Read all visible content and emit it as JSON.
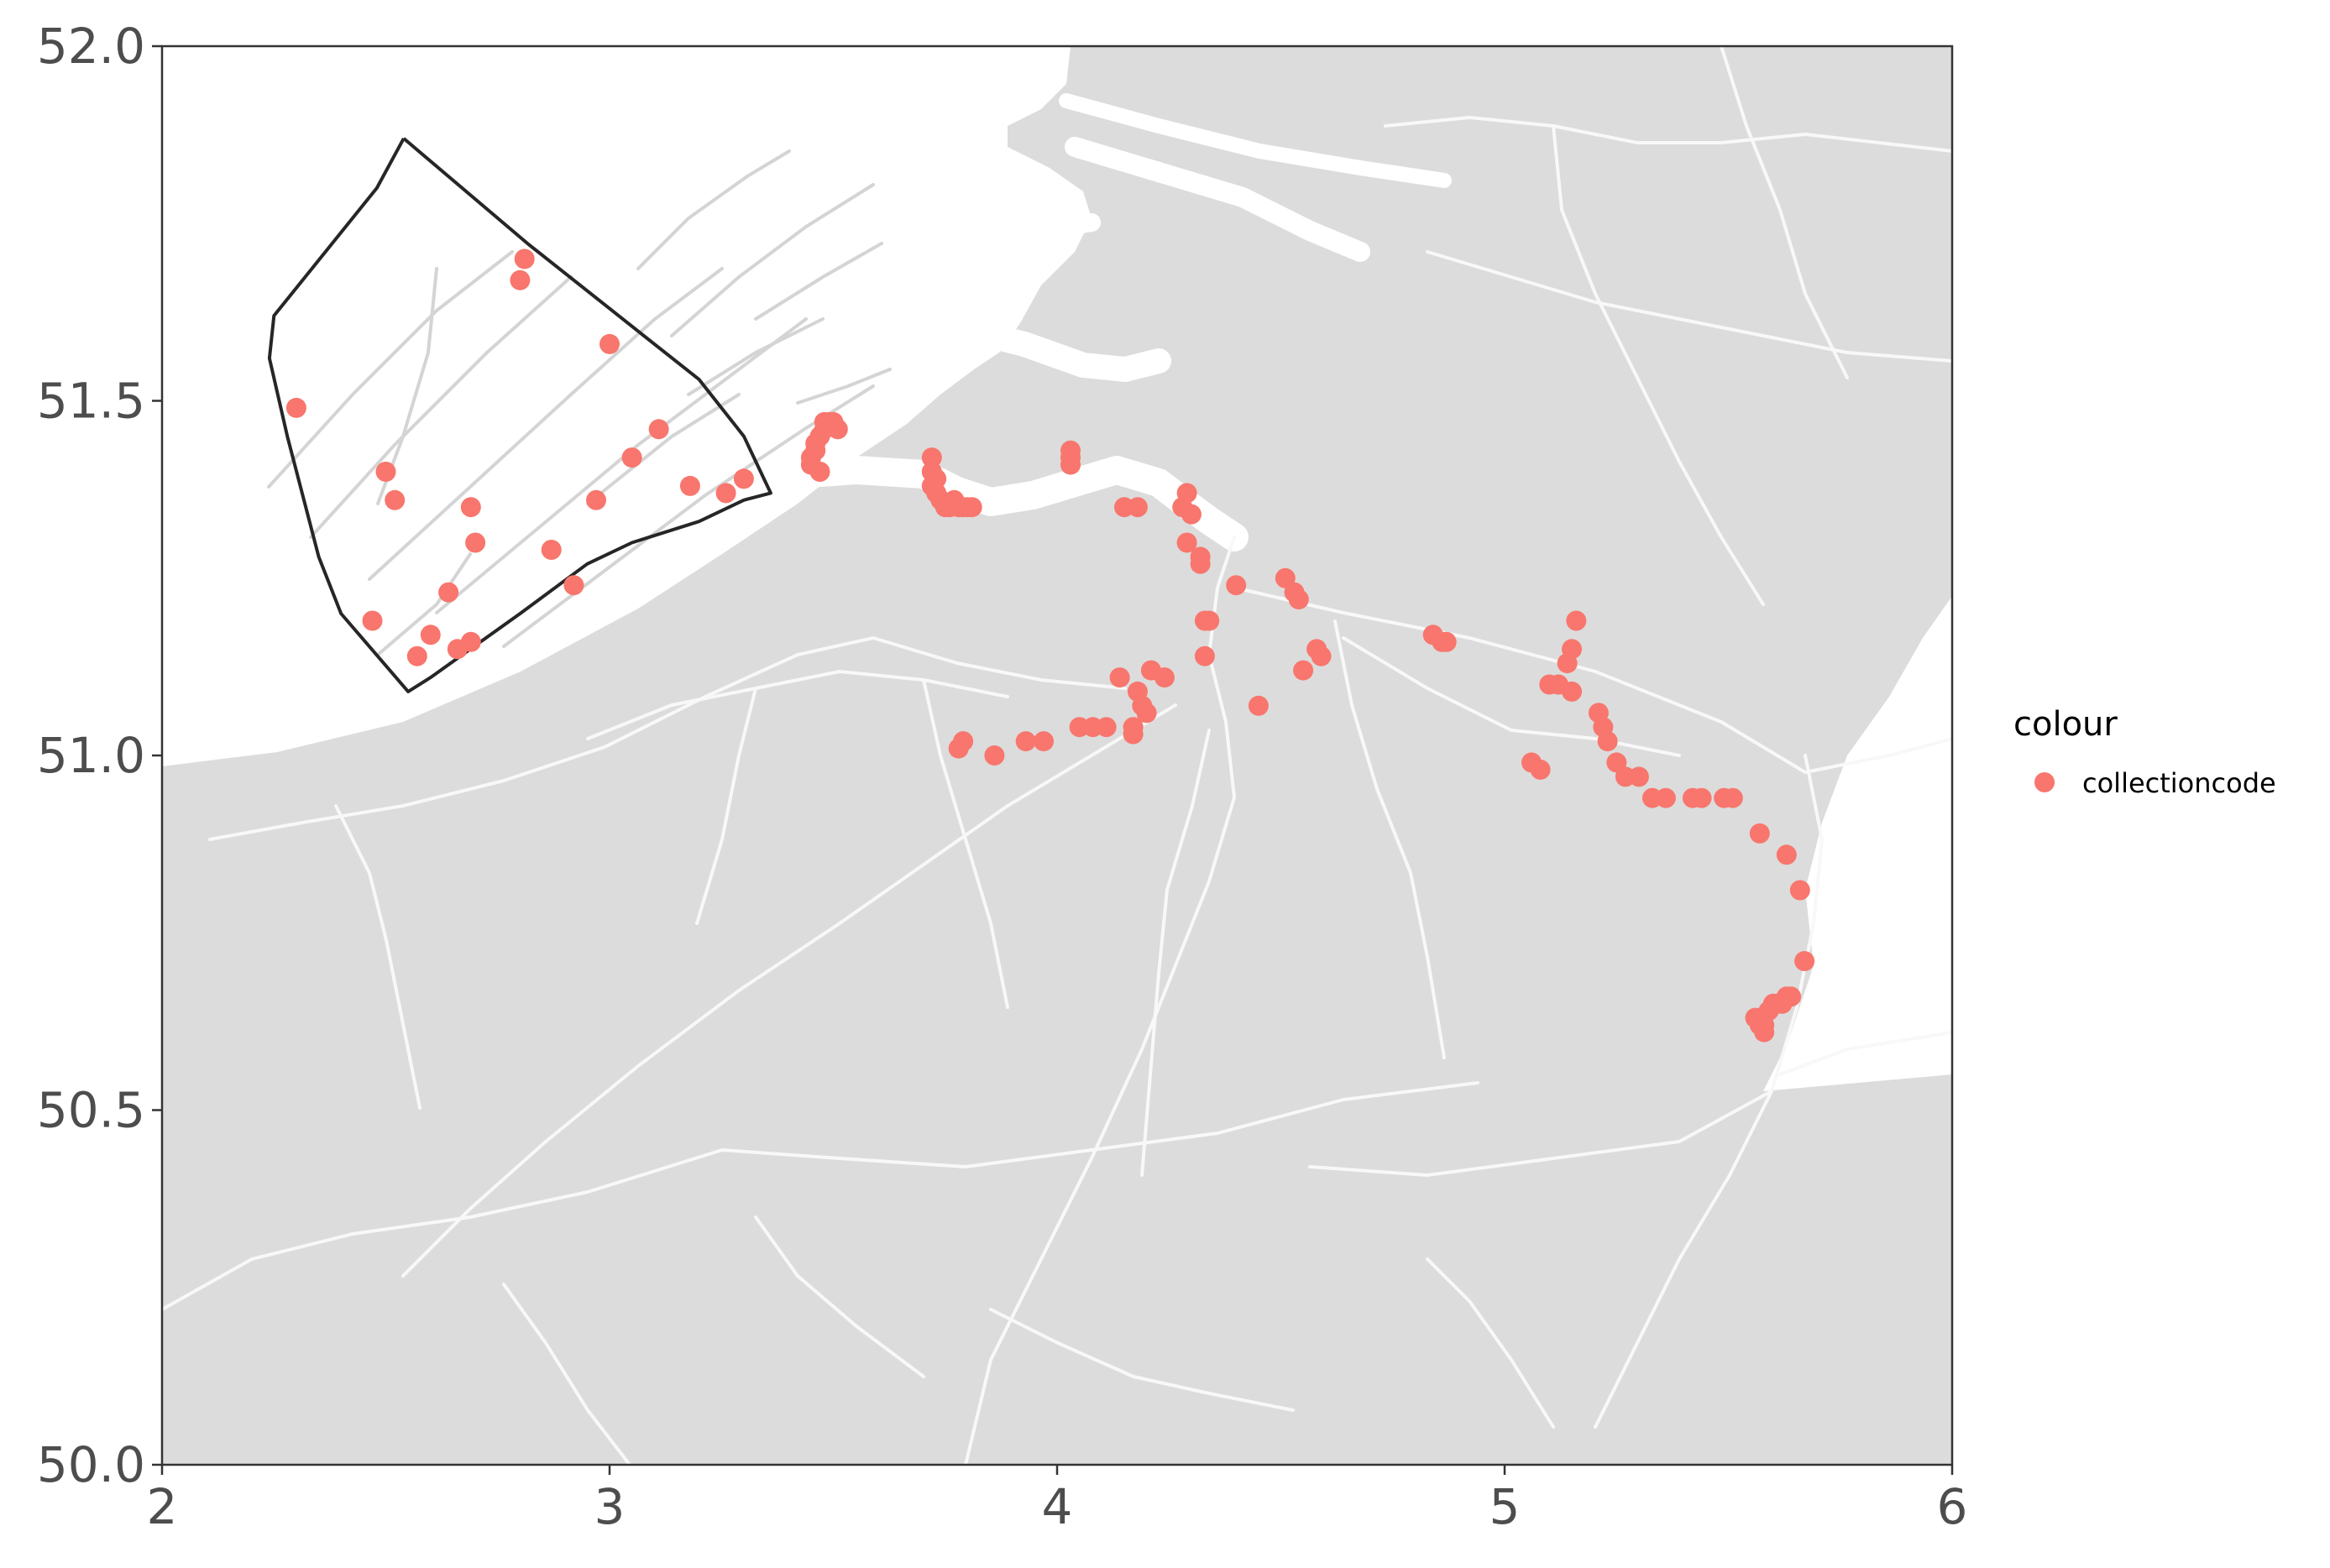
{
  "chart_data": {
    "type": "scatter",
    "title": "",
    "xlabel": "",
    "ylabel": "",
    "xlim": [
      2,
      6
    ],
    "ylim": [
      50,
      52
    ],
    "xticks": [
      2,
      3,
      4,
      5,
      6
    ],
    "yticks": [
      50.0,
      50.5,
      51.0,
      51.5,
      52.0
    ],
    "xtick_labels": [
      "2",
      "3",
      "4",
      "5",
      "6"
    ],
    "ytick_labels": [
      "50.0",
      "50.5",
      "51.0",
      "51.5",
      "52.0"
    ],
    "grid": false,
    "legend": {
      "title": "colour",
      "placement": "right",
      "entries": [
        {
          "label": "collectioncode",
          "color": "#f8766d"
        }
      ]
    },
    "colors": {
      "points": "#f8766d",
      "land": "#dcdcdc",
      "water_lines": "#ffffff",
      "sea": "#ffffff",
      "outline": "#262626",
      "sandbank": "#d4d4d4"
    },
    "region_outline": {
      "lon": [
        2.54,
        2.48,
        2.25,
        2.24,
        2.28,
        2.35,
        2.4,
        2.55,
        2.6,
        2.8,
        2.95,
        3.05,
        3.2,
        3.3,
        3.36,
        3.3,
        3.2,
        3.0,
        2.82,
        2.54
      ],
      "lat": [
        51.87,
        51.8,
        51.62,
        51.56,
        51.45,
        51.28,
        51.2,
        51.09,
        51.11,
        51.2,
        51.27,
        51.3,
        51.33,
        51.36,
        51.37,
        51.45,
        51.53,
        51.63,
        51.72,
        51.87
      ]
    },
    "series": [
      {
        "name": "collectioncode",
        "lon": [
          2.8,
          2.81,
          3.0,
          2.3,
          2.5,
          2.52,
          2.69,
          2.7,
          2.87,
          2.97,
          3.05,
          3.11,
          3.18,
          3.26,
          3.3,
          2.47,
          2.57,
          2.6,
          2.64,
          2.66,
          2.69,
          2.92,
          3.45,
          3.45,
          3.46,
          3.46,
          3.47,
          3.47,
          3.48,
          3.48,
          3.49,
          3.5,
          3.51,
          3.72,
          3.72,
          3.72,
          3.73,
          3.73,
          3.74,
          3.75,
          3.76,
          3.77,
          3.78,
          3.79,
          3.8,
          3.81,
          4.03,
          4.03,
          4.03,
          4.15,
          4.18,
          4.28,
          4.29,
          4.29,
          4.3,
          4.32,
          4.32,
          4.33,
          4.34,
          4.33,
          4.4,
          4.51,
          4.53,
          4.54,
          4.58,
          4.59,
          4.55,
          4.45,
          3.78,
          3.79,
          3.86,
          3.93,
          3.97,
          4.05,
          4.08,
          4.11,
          4.17,
          4.18,
          4.14,
          4.17,
          4.19,
          4.2,
          4.21,
          4.24,
          4.84,
          4.86,
          4.87,
          5.16,
          5.15,
          5.14,
          5.15,
          5.1,
          5.12,
          5.06,
          5.08,
          5.21,
          5.22,
          5.23,
          5.25,
          5.27,
          5.3,
          5.33,
          5.36,
          5.42,
          5.44,
          5.49,
          5.51,
          5.57,
          5.63,
          5.66,
          5.67,
          5.56,
          5.57,
          5.58,
          5.59,
          5.6,
          5.61,
          5.62,
          5.63,
          5.64,
          5.57,
          5.58
        ],
        "lat": [
          51.67,
          51.7,
          51.58,
          51.49,
          51.4,
          51.36,
          51.35,
          51.3,
          51.29,
          51.36,
          51.42,
          51.46,
          51.38,
          51.37,
          51.39,
          51.19,
          51.14,
          51.17,
          51.23,
          51.15,
          51.16,
          51.24,
          51.41,
          51.42,
          51.43,
          51.44,
          51.45,
          51.4,
          51.46,
          51.47,
          51.47,
          51.47,
          51.46,
          51.42,
          51.4,
          51.38,
          51.37,
          51.39,
          51.36,
          51.35,
          51.35,
          51.36,
          51.35,
          51.35,
          51.35,
          51.35,
          51.41,
          51.42,
          51.43,
          51.35,
          51.35,
          51.35,
          51.37,
          51.3,
          51.34,
          51.28,
          51.27,
          51.19,
          51.19,
          51.14,
          51.24,
          51.25,
          51.23,
          51.22,
          51.15,
          51.14,
          51.12,
          51.07,
          51.01,
          51.02,
          51.0,
          51.02,
          51.02,
          51.04,
          51.04,
          51.04,
          51.03,
          51.09,
          51.11,
          51.04,
          51.07,
          51.06,
          51.12,
          51.11,
          51.17,
          51.16,
          51.16,
          51.19,
          51.15,
          51.13,
          51.09,
          51.1,
          51.1,
          50.99,
          50.98,
          51.06,
          51.04,
          51.02,
          50.99,
          50.97,
          50.97,
          50.94,
          50.94,
          50.94,
          50.94,
          50.94,
          50.94,
          50.89,
          50.86,
          50.81,
          50.71,
          50.63,
          50.62,
          50.61,
          50.64,
          50.65,
          50.65,
          50.65,
          50.66,
          50.66,
          50.63,
          50.62
        ]
      }
    ]
  }
}
